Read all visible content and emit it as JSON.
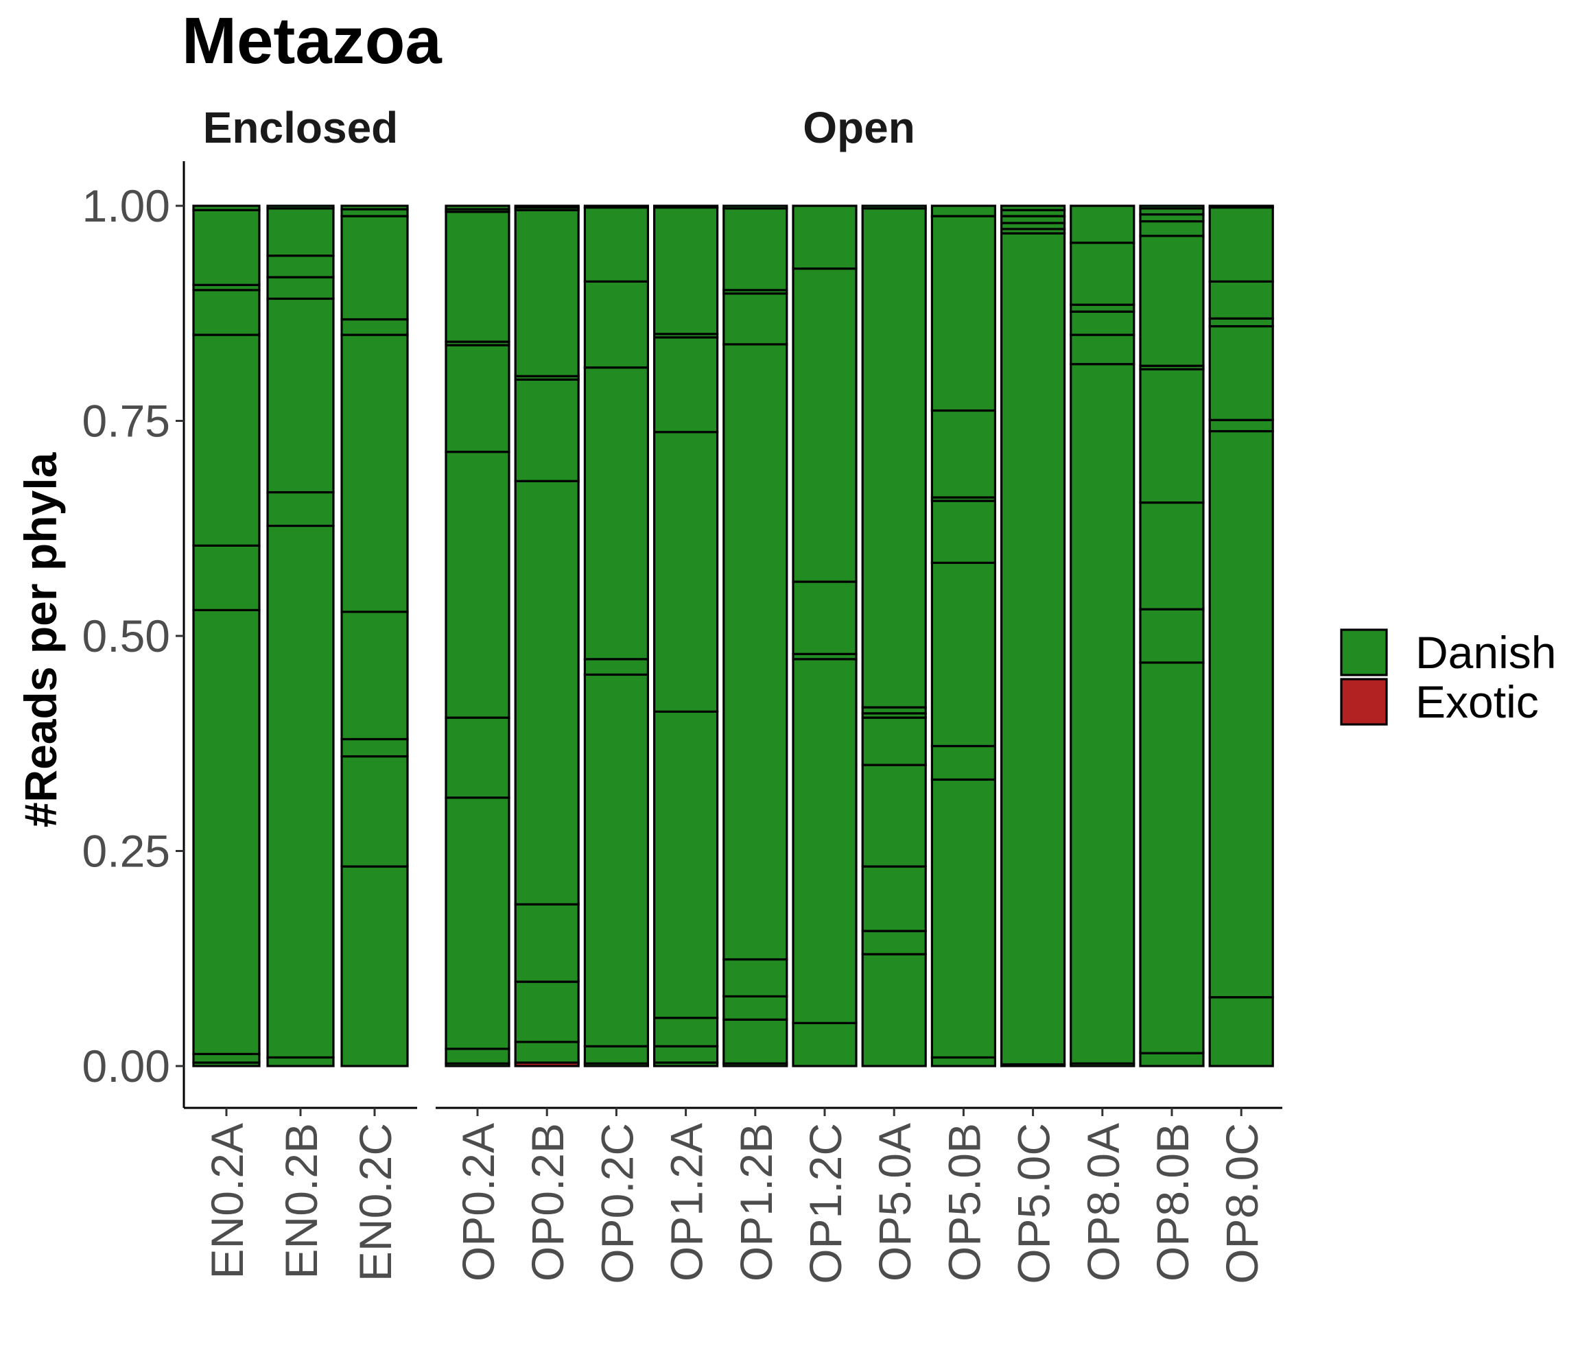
{
  "chart_data": {
    "type": "bar",
    "stacked": true,
    "title": "Metazoa",
    "ylabel": "#Reads per phyla",
    "xlabel": "",
    "ylim": [
      0,
      1
    ],
    "yticks": [
      "0.00",
      "0.25",
      "0.50",
      "0.75",
      "1.00"
    ],
    "ytick_values": [
      0,
      0.25,
      0.5,
      0.75,
      1.0
    ],
    "grid": false,
    "legend_position": "right",
    "legend": [
      {
        "name": "Danish",
        "color": "#228B22"
      },
      {
        "name": "Exotic",
        "color": "#B22222"
      }
    ],
    "facets": [
      {
        "name": "Enclosed",
        "samples": [
          {
            "name": "EN0.2A",
            "boundaries": [
              0,
              0.004,
              0.014,
              0.53,
              0.605,
              0.85,
              0.902,
              0.908,
              0.995,
              1.0
            ]
          },
          {
            "name": "EN0.2B",
            "boundaries": [
              0,
              0.01,
              0.628,
              0.667,
              0.892,
              0.917,
              0.942,
              0.997,
              1.0
            ]
          },
          {
            "name": "EN0.2C",
            "boundaries": [
              0,
              0.232,
              0.36,
              0.38,
              0.528,
              0.85,
              0.868,
              0.988,
              0.996,
              1.0
            ]
          }
        ]
      },
      {
        "name": "Open",
        "samples": [
          {
            "name": "OP0.2A",
            "boundaries": [
              0,
              0.003,
              0.02,
              0.312,
              0.405,
              0.714,
              0.838,
              0.842,
              0.993,
              0.996,
              1.0
            ]
          },
          {
            "name": "OP0.2B",
            "boundaries": [
              0,
              0.004,
              0.028,
              0.098,
              0.188,
              0.68,
              0.798,
              0.802,
              0.995,
              0.998,
              1.0
            ]
          },
          {
            "name": "OP0.2C",
            "boundaries": [
              0,
              0.003,
              0.023,
              0.455,
              0.473,
              0.812,
              0.912,
              0.998,
              1.0
            ]
          },
          {
            "name": "OP1.2A",
            "boundaries": [
              0,
              0.004,
              0.023,
              0.056,
              0.412,
              0.737,
              0.847,
              0.851,
              0.998,
              1.0
            ]
          },
          {
            "name": "OP1.2B",
            "boundaries": [
              0,
              0.003,
              0.054,
              0.081,
              0.124,
              0.839,
              0.898,
              0.902,
              0.997,
              1.0
            ]
          },
          {
            "name": "OP1.2C",
            "boundaries": [
              0,
              0.05,
              0.473,
              0.479,
              0.563,
              0.927,
              1.0
            ]
          },
          {
            "name": "OP5.0A",
            "boundaries": [
              0,
              0.13,
              0.157,
              0.232,
              0.35,
              0.405,
              0.41,
              0.417,
              0.997,
              1.0
            ]
          },
          {
            "name": "OP5.0B",
            "boundaries": [
              0,
              0.01,
              0.333,
              0.372,
              0.585,
              0.657,
              0.661,
              0.762,
              0.988,
              1.0
            ]
          },
          {
            "name": "OP5.0C",
            "boundaries": [
              0,
              0.002,
              0.968,
              0.973,
              0.98,
              0.988,
              0.995,
              1.0
            ]
          },
          {
            "name": "OP8.0A",
            "boundaries": [
              0,
              0.003,
              0.816,
              0.85,
              0.877,
              0.885,
              0.957,
              1.0
            ]
          },
          {
            "name": "OP8.0B",
            "boundaries": [
              0,
              0.015,
              0.469,
              0.531,
              0.655,
              0.81,
              0.814,
              0.965,
              0.982,
              0.99,
              0.997,
              1.0
            ]
          },
          {
            "name": "OP8.0C",
            "boundaries": [
              0,
              0.08,
              0.738,
              0.751,
              0.86,
              0.869,
              0.912,
              0.998,
              1.0
            ]
          }
        ]
      }
    ],
    "exotic_segments": [
      {
        "sample": "OP0.2B",
        "range": [
          0,
          0.004
        ]
      }
    ]
  }
}
